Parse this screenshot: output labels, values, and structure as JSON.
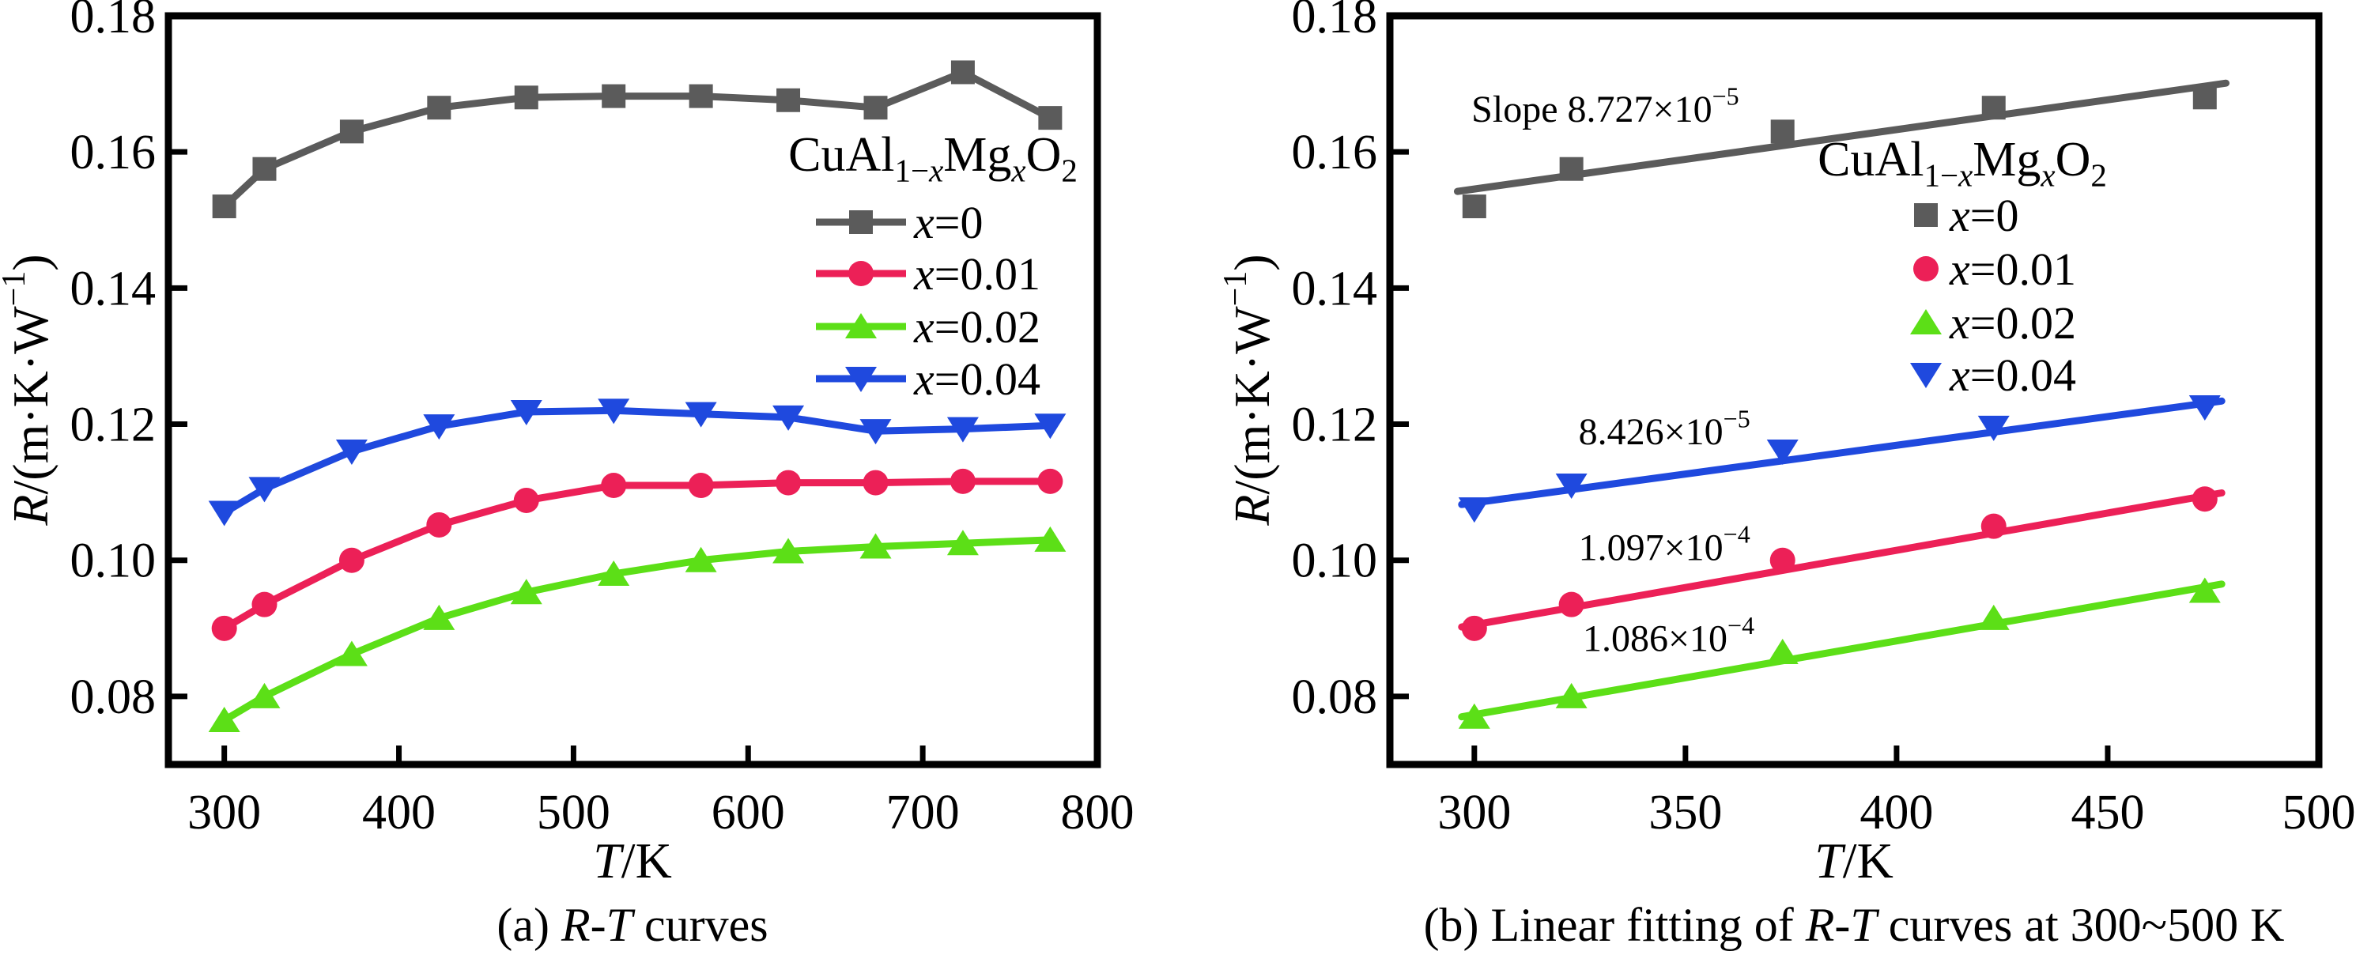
{
  "figure": {
    "background": "#ffffff",
    "axis_color": "#000000",
    "xlabel": "T/K",
    "xlabel_parts": [
      {
        "t": "T",
        "italic": true
      },
      {
        "t": "/K"
      }
    ],
    "ylabel": "R/(m·K·W⁻¹)",
    "ylabel_parts": [
      {
        "t": "R",
        "italic": true
      },
      {
        "t": "/(m·K·W"
      },
      {
        "t": "−1",
        "sup": true
      },
      {
        "t": ")"
      }
    ],
    "legend_title": "CuAl1−xMgxO2",
    "legend_title_parts": [
      {
        "t": "CuAl"
      },
      {
        "t": "1−",
        "sub": true
      },
      {
        "t": "x",
        "sub": true,
        "italic": true
      },
      {
        "t": "Mg"
      },
      {
        "t": "x",
        "sub": true,
        "italic": true
      },
      {
        "t": "O"
      },
      {
        "t": "2",
        "sub": true
      }
    ]
  },
  "chart_data": [
    {
      "type": "line",
      "panel": "a",
      "caption": "(a) R-T curves",
      "caption_parts": [
        {
          "t": "(a) "
        },
        {
          "t": "R",
          "italic": true
        },
        {
          "t": "-"
        },
        {
          "t": "T",
          "italic": true
        },
        {
          "t": " curves"
        }
      ],
      "xlabel": "T/K",
      "ylabel": "R/(m·K·W⁻¹)",
      "xlim": [
        268,
        800
      ],
      "ylim": [
        0.07,
        0.18
      ],
      "xticks": [
        300,
        400,
        500,
        600,
        700,
        800
      ],
      "yticks": [
        0.08,
        0.1,
        0.12,
        0.14,
        0.16,
        0.18
      ],
      "grid": false,
      "legend_position": "upper-right-inside",
      "x": [
        300,
        323,
        373,
        423,
        473,
        523,
        573,
        623,
        673,
        723,
        773
      ],
      "series": [
        {
          "name": "x=0",
          "color": "#5B5B5B",
          "marker": "square",
          "values": [
            0.152,
            0.1575,
            0.163,
            0.1665,
            0.168,
            0.1682,
            0.1682,
            0.1676,
            0.1665,
            0.1717,
            0.165
          ]
        },
        {
          "name": "x=0.01",
          "color": "#EC2057",
          "marker": "circle",
          "values": [
            0.09,
            0.0935,
            0.1,
            0.1052,
            0.1088,
            0.111,
            0.111,
            0.1114,
            0.1114,
            0.1116,
            0.1116
          ]
        },
        {
          "name": "x=0.02",
          "color": "#5CDF17",
          "marker": "triangle-up",
          "values": [
            0.0765,
            0.08,
            0.0862,
            0.0915,
            0.0953,
            0.098,
            0.1,
            0.1013,
            0.102,
            0.1025,
            0.103
          ]
        },
        {
          "name": "x=0.04",
          "color": "#1F49DE",
          "marker": "triangle-down",
          "values": [
            0.107,
            0.1105,
            0.116,
            0.1197,
            0.1218,
            0.122,
            0.1215,
            0.121,
            0.119,
            0.1193,
            0.1198
          ]
        }
      ]
    },
    {
      "type": "scatter",
      "panel": "b",
      "caption": "(b) Linear fitting of R-T curves at 300~500 K",
      "caption_parts": [
        {
          "t": "(b) Linear fitting of "
        },
        {
          "t": "R",
          "italic": true
        },
        {
          "t": "-"
        },
        {
          "t": "T",
          "italic": true
        },
        {
          "t": " curves at 300~500 K"
        }
      ],
      "xlabel": "T/K",
      "ylabel": "R/(m·K·W⁻¹)",
      "xlim": [
        280,
        500
      ],
      "ylim": [
        0.07,
        0.18
      ],
      "xticks": [
        300,
        350,
        400,
        450,
        500
      ],
      "yticks": [
        0.08,
        0.1,
        0.12,
        0.14,
        0.16,
        0.18
      ],
      "grid": false,
      "legend_position": "upper-right-inside",
      "x": [
        300,
        323,
        373,
        423,
        473
      ],
      "series": [
        {
          "name": "x=0",
          "color": "#5B5B5B",
          "marker": "square",
          "values": [
            0.152,
            0.1575,
            0.163,
            0.1665,
            0.168
          ],
          "fit": {
            "slope": "8.727×10⁻⁵",
            "label_parts": [
              {
                "t": "Slope 8.727×10"
              },
              {
                "t": "−5",
                "sup": true
              }
            ],
            "line": [
              [
                296,
                0.1542
              ],
              [
                478,
                0.1701
              ]
            ],
            "label_at": [
              331,
              0.1664
            ]
          }
        },
        {
          "name": "x=0.01",
          "color": "#EC2057",
          "marker": "circle",
          "values": [
            0.09,
            0.0935,
            0.1,
            0.105,
            0.109
          ],
          "fit": {
            "slope": "1.097×10⁻⁴",
            "label_parts": [
              {
                "t": "1.097×10"
              },
              {
                "t": "−4",
                "sup": true
              }
            ],
            "line": [
              [
                297,
                0.0902
              ],
              [
                477,
                0.1099
              ]
            ],
            "label_at": [
              345,
              0.102
            ]
          }
        },
        {
          "name": "x=0.02",
          "color": "#5CDF17",
          "marker": "triangle-up",
          "values": [
            0.077,
            0.08,
            0.0865,
            0.0915,
            0.0955
          ],
          "fit": {
            "slope": "1.086×10⁻⁴",
            "label_parts": [
              {
                "t": "1.086×10"
              },
              {
                "t": "−4",
                "sup": true
              }
            ],
            "line": [
              [
                297,
                0.077
              ],
              [
                477,
                0.0965
              ]
            ],
            "label_at": [
              346,
              0.0886
            ]
          }
        },
        {
          "name": "x=0.04",
          "color": "#1F49DE",
          "marker": "triangle-down",
          "values": [
            0.1075,
            0.111,
            0.116,
            0.1195,
            0.1225
          ],
          "fit": {
            "slope": "8.426×10⁻⁵",
            "label_parts": [
              {
                "t": "8.426×10"
              },
              {
                "t": "−5",
                "sup": true
              }
            ],
            "line": [
              [
                297,
                0.1082
              ],
              [
                477,
                0.1234
              ]
            ],
            "label_at": [
              345,
              0.119
            ]
          }
        }
      ]
    }
  ]
}
